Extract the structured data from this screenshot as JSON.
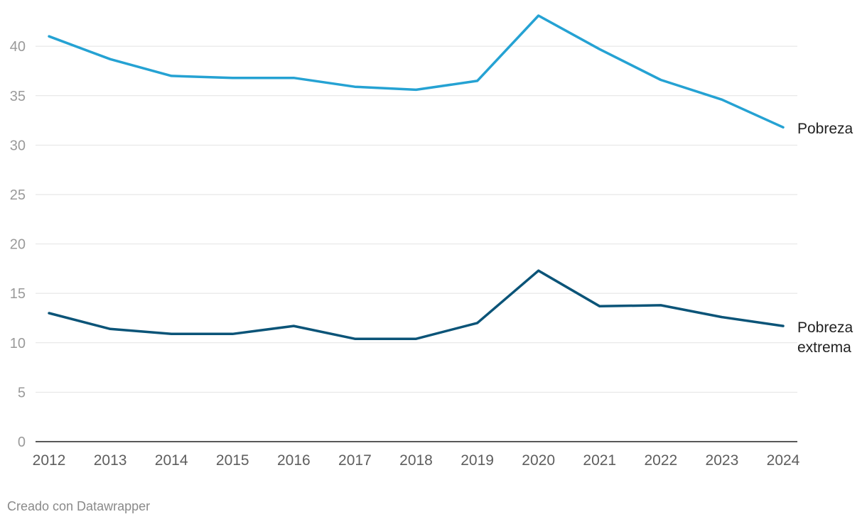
{
  "chart_data": {
    "type": "line",
    "x": [
      "2012",
      "2013",
      "2014",
      "2015",
      "2016",
      "2017",
      "2018",
      "2019",
      "2020",
      "2021",
      "2022",
      "2023",
      "2024"
    ],
    "series": [
      {
        "name": "Pobreza",
        "color": "#25a2d3",
        "values": [
          41.0,
          38.7,
          37.0,
          36.8,
          36.8,
          35.9,
          35.6,
          36.5,
          43.1,
          39.7,
          36.6,
          34.6,
          31.8
        ]
      },
      {
        "name": "Pobreza extrema",
        "color": "#0b5478",
        "values": [
          13.0,
          11.4,
          10.9,
          10.9,
          11.7,
          10.4,
          10.4,
          12.0,
          17.3,
          13.7,
          13.8,
          12.6,
          11.7
        ]
      }
    ],
    "yticks": [
      0,
      5,
      10,
      15,
      20,
      25,
      30,
      35,
      40
    ],
    "ylim": [
      0,
      43.1
    ],
    "grid": true,
    "legend": "direct labels at line ends",
    "title": "",
    "xlabel": "",
    "ylabel": ""
  },
  "footer": {
    "credit": "Creado con Datawrapper"
  },
  "labels": {
    "pobreza": [
      "Pobreza"
    ],
    "pobreza_extrema": [
      "Pobreza",
      "extrema"
    ]
  }
}
